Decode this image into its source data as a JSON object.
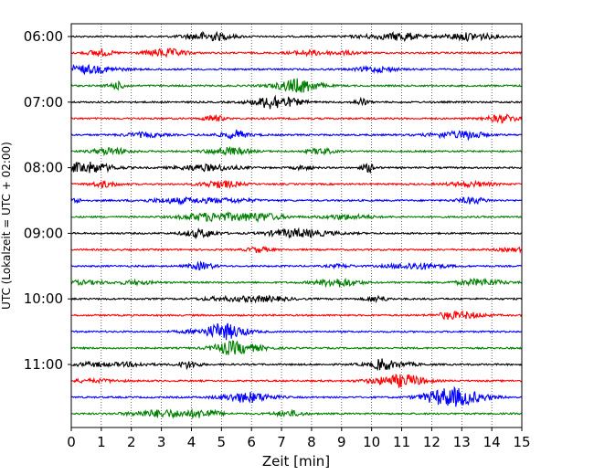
{
  "chart_data": {
    "type": "line",
    "title": "",
    "xlabel": "Zeit  [min]",
    "ylabel": "UTC (Lokalzeit = UTC + 02:00)",
    "xlim": [
      0,
      15
    ],
    "x_ticks": [
      "0",
      "1",
      "2",
      "3",
      "4",
      "5",
      "6",
      "7",
      "8",
      "9",
      "10",
      "11",
      "12",
      "13",
      "14",
      "15"
    ],
    "grid": {
      "x": true,
      "y": false
    },
    "row_count": 24,
    "row_colors": [
      "#000000",
      "#ff0000",
      "#0000ff",
      "#008000"
    ],
    "y_tick_labels": [
      {
        "label": "06:00",
        "row": 0
      },
      {
        "label": "07:00",
        "row": 4
      },
      {
        "label": "08:00",
        "row": 8
      },
      {
        "label": "09:00",
        "row": 12
      },
      {
        "label": "10:00",
        "row": 16
      },
      {
        "label": "11:00",
        "row": 20
      }
    ],
    "legend": "none"
  }
}
